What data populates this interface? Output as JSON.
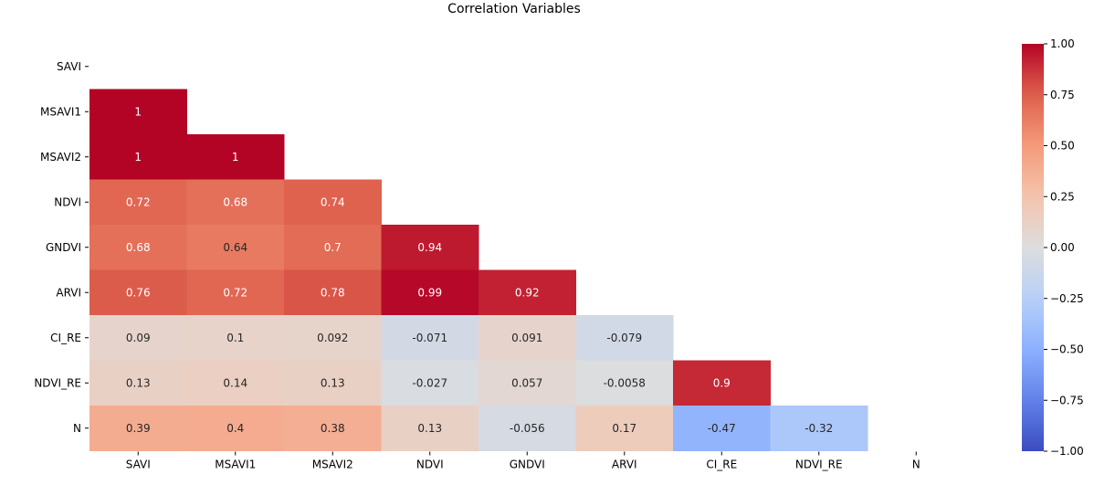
{
  "chart_data": {
    "type": "heatmap",
    "title": "Correlation Variables",
    "variables": [
      "SAVI",
      "MSAVI1",
      "MSAVI2",
      "NDVI",
      "GNDVI",
      "ARVI",
      "CI_RE",
      "NDVI_RE",
      "N"
    ],
    "mask": "upper-triangle-and-diagonal",
    "colormap": "coolwarm",
    "vmin": -1.0,
    "vmax": 1.0,
    "cells": [
      [
        null,
        null,
        null,
        null,
        null,
        null,
        null,
        null,
        null
      ],
      [
        1,
        null,
        null,
        null,
        null,
        null,
        null,
        null,
        null
      ],
      [
        1,
        1,
        null,
        null,
        null,
        null,
        null,
        null,
        null
      ],
      [
        0.72,
        0.68,
        0.74,
        null,
        null,
        null,
        null,
        null,
        null
      ],
      [
        0.68,
        0.64,
        0.7,
        0.94,
        null,
        null,
        null,
        null,
        null
      ],
      [
        0.76,
        0.72,
        0.78,
        0.99,
        0.92,
        null,
        null,
        null,
        null
      ],
      [
        0.09,
        0.1,
        0.092,
        -0.071,
        0.091,
        -0.079,
        null,
        null,
        null
      ],
      [
        0.13,
        0.14,
        0.13,
        -0.027,
        0.057,
        -0.0058,
        0.9,
        null,
        null
      ],
      [
        0.39,
        0.4,
        0.38,
        0.13,
        -0.056,
        0.17,
        -0.47,
        -0.32,
        null
      ]
    ],
    "cell_labels": [
      [
        null,
        null,
        null,
        null,
        null,
        null,
        null,
        null,
        null
      ],
      [
        "1",
        null,
        null,
        null,
        null,
        null,
        null,
        null,
        null
      ],
      [
        "1",
        "1",
        null,
        null,
        null,
        null,
        null,
        null,
        null
      ],
      [
        "0.72",
        "0.68",
        "0.74",
        null,
        null,
        null,
        null,
        null,
        null
      ],
      [
        "0.68",
        "0.64",
        "0.7",
        "0.94",
        null,
        null,
        null,
        null,
        null
      ],
      [
        "0.76",
        "0.72",
        "0.78",
        "0.99",
        "0.92",
        null,
        null,
        null,
        null
      ],
      [
        "0.09",
        "0.1",
        "0.092",
        "-0.071",
        "0.091",
        "-0.079",
        null,
        null,
        null
      ],
      [
        "0.13",
        "0.14",
        "0.13",
        "-0.027",
        "0.057",
        "-0.0058",
        "0.9",
        null,
        null
      ],
      [
        "0.39",
        "0.4",
        "0.38",
        "0.13",
        "-0.056",
        "0.17",
        "-0.47",
        "-0.32",
        null
      ]
    ],
    "colorbar": {
      "ticks": [
        1.0,
        0.75,
        0.5,
        0.25,
        0.0,
        -0.25,
        -0.5,
        -0.75,
        -1.0
      ],
      "tick_labels": [
        "1.00",
        "0.75",
        "0.50",
        "0.25",
        "0.00",
        "−0.25",
        "−0.50",
        "−0.75",
        "−1.00"
      ]
    },
    "grid": false,
    "legend": "colorbar-right"
  }
}
